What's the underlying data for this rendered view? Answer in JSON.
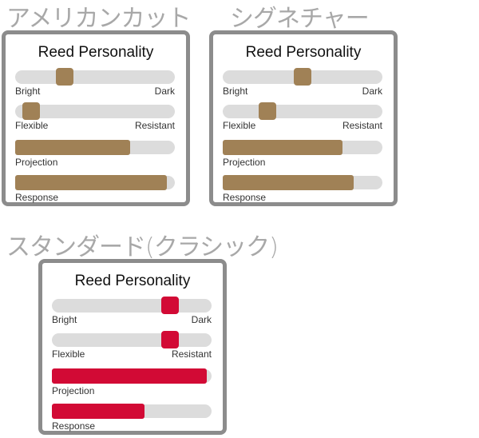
{
  "colors": {
    "track": "#dcdcdc",
    "border": "#8c8c8c"
  },
  "panels": [
    {
      "heading": "アメリカンカット",
      "title": "Reed Personality",
      "color": "#a08156",
      "sliders": [
        {
          "left": "Bright",
          "right": "Dark",
          "value": 31
        },
        {
          "left": "Flexible",
          "right": "Resistant",
          "value": 10
        }
      ],
      "bars": [
        {
          "label": "Projection",
          "value": 72
        },
        {
          "label": "Response",
          "value": 95
        }
      ]
    },
    {
      "heading": "シグネチャー",
      "title": "Reed Personality",
      "color": "#a08156",
      "sliders": [
        {
          "left": "Bright",
          "right": "Dark",
          "value": 50
        },
        {
          "left": "Flexible",
          "right": "Resistant",
          "value": 28
        }
      ],
      "bars": [
        {
          "label": "Projection",
          "value": 75
        },
        {
          "label": "Response",
          "value": 82
        }
      ]
    },
    {
      "heading": "スタンダード(クラシック)",
      "title": "Reed Personality",
      "color": "#d20a35",
      "sliders": [
        {
          "left": "Bright",
          "right": "Dark",
          "value": 74
        },
        {
          "left": "Flexible",
          "right": "Resistant",
          "value": 74
        }
      ],
      "bars": [
        {
          "label": "Projection",
          "value": 97
        },
        {
          "label": "Response",
          "value": 58
        }
      ]
    }
  ]
}
